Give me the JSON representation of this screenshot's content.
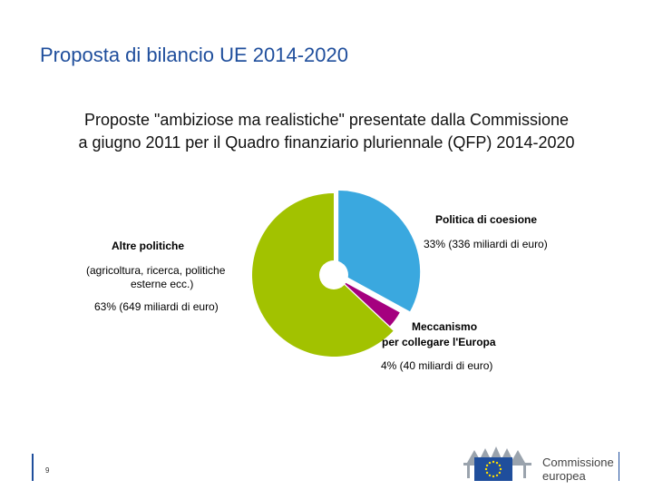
{
  "slide": {
    "title": "Proposta di bilancio UE 2014-2020",
    "subtitle_line1": "Proposte \"ambiziose ma realistiche\" presentate dalla Commissione",
    "subtitle_line2": "a giugno 2011 per il Quadro finanziario pluriennale (QFP) 2014-2020",
    "page_number": "9"
  },
  "chart_data": {
    "type": "pie",
    "title": "",
    "slices": [
      {
        "name": "Politica di coesione",
        "value": 33,
        "label_value": "33% (336 miliardi di euro)",
        "color": "#3aa8df"
      },
      {
        "name_line1": "Meccanismo",
        "name_line2": "per collegare l'Europa",
        "value": 4,
        "label_value": "4% (40 miliardi di euro)",
        "color": "#a5007f"
      },
      {
        "name": "Altre politiche",
        "detail_line1": "(agricoltura, ricerca, politiche",
        "detail_line2": "esterne ecc.)",
        "value": 63,
        "label_value": "63% (649 miliardi di euro)",
        "color": "#a2c200"
      }
    ]
  },
  "logo": {
    "line1": "Commissione",
    "line2": "europea",
    "flag_color": "#1f4e9c",
    "star_color": "#ffdd00"
  }
}
